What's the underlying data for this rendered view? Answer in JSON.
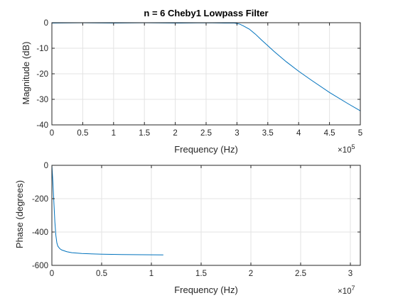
{
  "chart_data": [
    {
      "type": "line",
      "title": "n = 6 Cheby1 Lowpass Filter",
      "xlabel": "Frequency (Hz)",
      "ylabel": "Magnitude (dB)",
      "x_multiplier": {
        "base": "×10",
        "exp": "5"
      },
      "xlim": [
        0,
        5
      ],
      "ylim": [
        -40,
        0
      ],
      "xticks": [
        0,
        0.5,
        1,
        1.5,
        2,
        2.5,
        3,
        3.5,
        4,
        4.5,
        5
      ],
      "xtick_labels": [
        "0",
        "0.5",
        "1",
        "1.5",
        "2",
        "2.5",
        "3",
        "3.5",
        "4",
        "4.5",
        "5"
      ],
      "yticks": [
        0,
        -10,
        -20,
        -30,
        -40
      ],
      "ytick_labels": [
        "0",
        "-10",
        "-20",
        "-30",
        "-40"
      ],
      "grid": true,
      "color": "#0072bd",
      "series": [
        {
          "x": [
            0,
            0.5,
            1,
            1.5,
            2,
            2.5,
            2.8,
            2.95,
            3.0,
            3.05,
            3.1,
            3.2,
            3.3,
            3.4,
            3.5,
            3.6,
            3.8,
            4.0,
            4.2,
            4.5,
            4.8,
            5.0
          ],
          "values": [
            -0.15,
            -0.05,
            -0.15,
            -0.05,
            -0.15,
            -0.05,
            -0.15,
            -0.1,
            -0.3,
            -0.6,
            -1.2,
            -2.5,
            -4.5,
            -6.8,
            -9.0,
            -11.2,
            -15.3,
            -19.0,
            -22.4,
            -27.3,
            -31.7,
            -34.5
          ]
        }
      ]
    },
    {
      "type": "line",
      "title": "",
      "xlabel": "Frequency (Hz)",
      "ylabel": "Phase (degrees)",
      "x_multiplier": {
        "base": "×10",
        "exp": "7"
      },
      "xlim": [
        0,
        3.1
      ],
      "ylim": [
        -600,
        0
      ],
      "xticks": [
        0,
        0.5,
        1,
        1.5,
        2,
        2.5,
        3
      ],
      "xtick_labels": [
        "0",
        "0.5",
        "1",
        "1.5",
        "2",
        "2.5",
        "3"
      ],
      "yticks": [
        0,
        -200,
        -400,
        -600
      ],
      "ytick_labels": [
        "0",
        "-200",
        "-400",
        "-600"
      ],
      "grid": true,
      "color": "#0072bd",
      "series": [
        {
          "x": [
            0,
            0.01,
            0.02,
            0.03,
            0.04,
            0.05,
            0.06,
            0.08,
            0.1,
            0.15,
            0.2,
            0.3,
            0.5,
            0.7,
            0.9,
            1.12
          ],
          "values": [
            0,
            -100,
            -220,
            -340,
            -420,
            -465,
            -485,
            -500,
            -508,
            -518,
            -524,
            -529,
            -533,
            -535,
            -536,
            -537
          ]
        }
      ]
    }
  ]
}
